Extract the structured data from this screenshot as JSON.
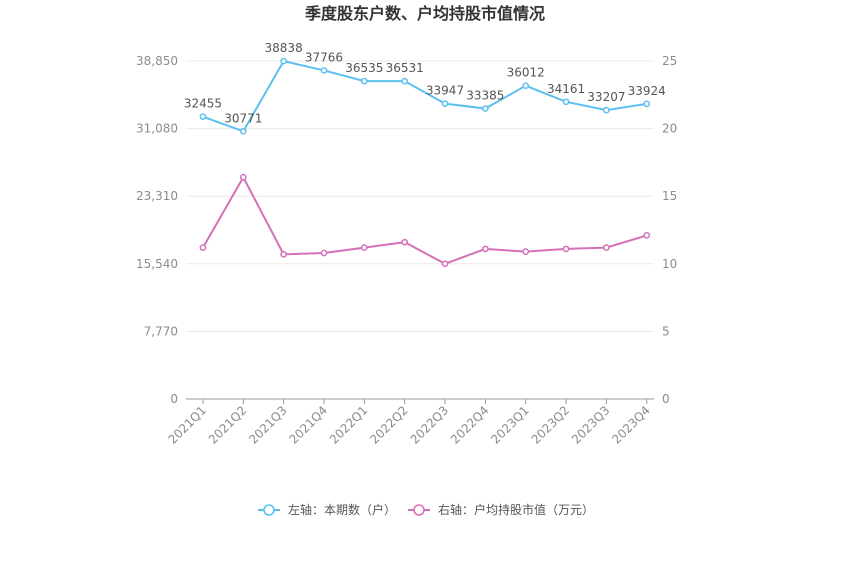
{
  "chart_data": {
    "type": "line",
    "title": "季度股东户数、户均持股市值情况",
    "categories": [
      "2021Q1",
      "2021Q2",
      "2021Q3",
      "2021Q4",
      "2022Q1",
      "2022Q2",
      "2022Q3",
      "2022Q4",
      "2023Q1",
      "2023Q2",
      "2023Q3",
      "2023Q4"
    ],
    "left_axis": {
      "ticks": [
        "0",
        "7,770",
        "15,540",
        "23,310",
        "31,080",
        "38,850"
      ],
      "min": 0,
      "max": 38850
    },
    "right_axis": {
      "ticks": [
        "0",
        "5",
        "10",
        "15",
        "20",
        "25"
      ],
      "min": 0,
      "max": 25
    },
    "series": [
      {
        "name": "左轴：本期数（户）",
        "axis": "left",
        "color": "#5bc0f0",
        "values": [
          32455,
          30771,
          38838,
          37766,
          36535,
          36531,
          33947,
          33385,
          36012,
          34161,
          33207,
          33924
        ],
        "labels": [
          "32455",
          "30771",
          "38838",
          "37766",
          "36535",
          "36531",
          "33947",
          "33385",
          "36012",
          "34161",
          "33207",
          "33924"
        ]
      },
      {
        "name": "右轴：户均持股市值（万元）",
        "axis": "right",
        "color": "#d470b8",
        "values": [
          11.2,
          16.4,
          10.7,
          10.8,
          11.2,
          11.6,
          10.0,
          11.1,
          10.9,
          11.1,
          11.2,
          12.1
        ]
      }
    ],
    "grid": true,
    "legend": "bottom"
  }
}
